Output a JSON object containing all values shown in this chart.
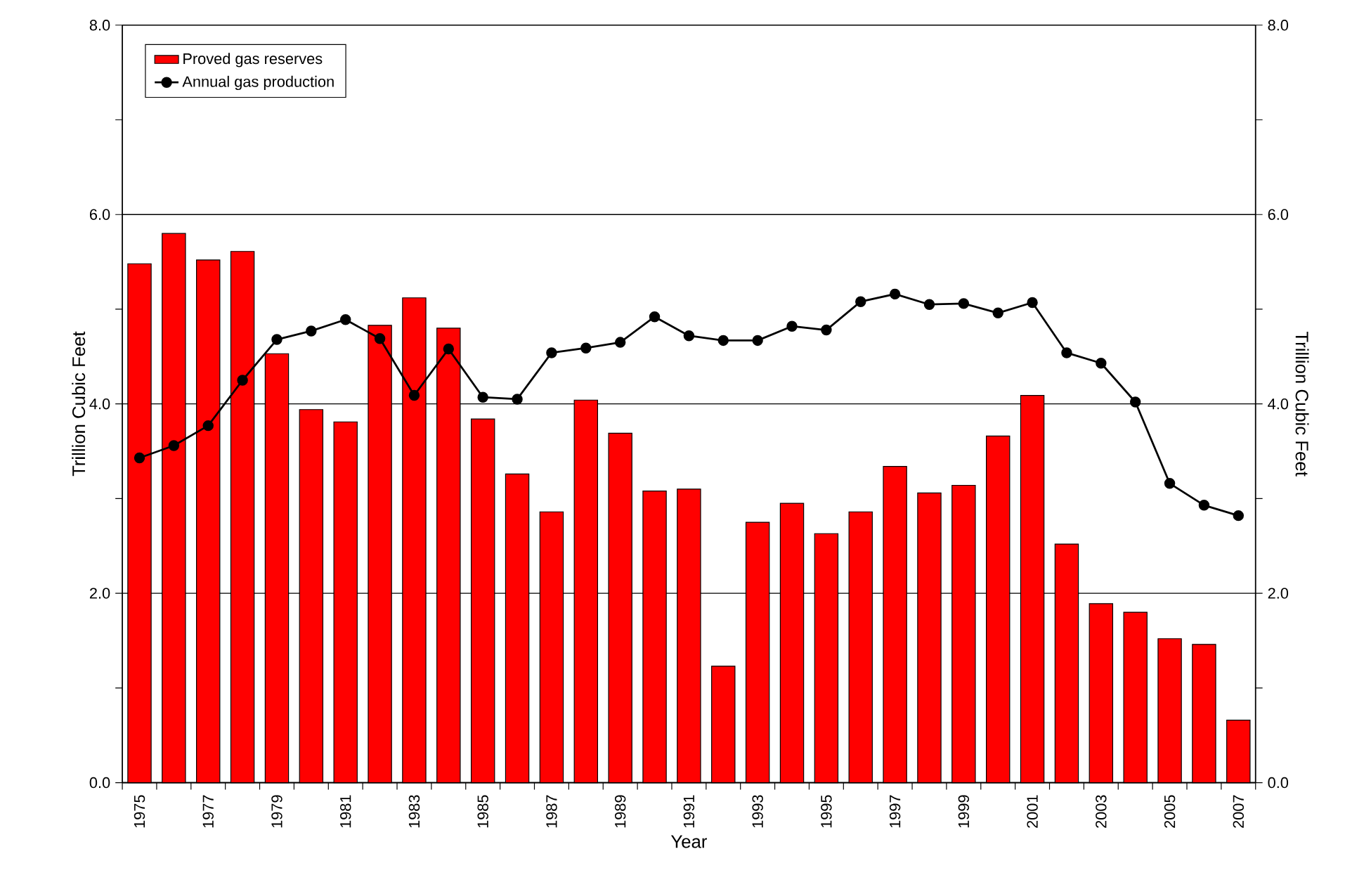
{
  "chart_data": {
    "type": "bar",
    "xlabel": "Year",
    "ylabel": "Trillion Cubic Feet",
    "y2label": "Trillion Cubic Feet",
    "categories": [
      "1975",
      null,
      "1977",
      null,
      "1979",
      null,
      "1981",
      null,
      "1983",
      null,
      "1985",
      null,
      "1987",
      null,
      "1989",
      null,
      "1991",
      null,
      "1993",
      null,
      "1995",
      null,
      "1997",
      null,
      "1999",
      null,
      "2001",
      null,
      "2003",
      null,
      "2005",
      null,
      "2007"
    ],
    "series": [
      {
        "name": "Proved gas reserves",
        "color": "#ff0000",
        "values": [
          5.48,
          5.8,
          5.52,
          5.61,
          4.53,
          3.94,
          3.81,
          4.83,
          5.12,
          4.8,
          3.84,
          3.26,
          2.86,
          4.04,
          3.69,
          3.08,
          3.1,
          1.23,
          2.75,
          2.95,
          2.63,
          2.86,
          3.34,
          3.06,
          3.14,
          3.66,
          4.09,
          2.52,
          1.89,
          1.8,
          1.52,
          1.46,
          0.66
        ]
      },
      {
        "name": "Annual gas production",
        "type": "line",
        "axis": "y2",
        "color": "#000000",
        "values": [
          3.43,
          3.56,
          3.77,
          4.25,
          4.68,
          4.77,
          4.89,
          4.69,
          4.09,
          4.58,
          4.07,
          4.05,
          4.54,
          4.59,
          4.65,
          4.92,
          4.72,
          4.67,
          4.67,
          4.82,
          4.78,
          5.08,
          5.16,
          5.05,
          5.06,
          4.96,
          5.07,
          4.54,
          4.43,
          4.02,
          3.16,
          2.93,
          2.82
        ]
      }
    ],
    "ylim": [
      0,
      8
    ],
    "yticks": [
      {
        "value": 0,
        "label": "0.0"
      },
      {
        "value": 1,
        "label": null
      },
      {
        "value": 2,
        "label": "2.0"
      },
      {
        "value": 3,
        "label": null
      },
      {
        "value": 4,
        "label": "4.0"
      },
      {
        "value": 5,
        "label": null
      },
      {
        "value": 6,
        "label": "6.0"
      },
      {
        "value": 7,
        "label": null
      },
      {
        "value": 8,
        "label": "8.0"
      }
    ],
    "y2lim": [
      0,
      8
    ],
    "y2ticks": [
      {
        "value": 0,
        "label": "0.0"
      },
      {
        "value": 1,
        "label": null
      },
      {
        "value": 2,
        "label": "2.0"
      },
      {
        "value": 3,
        "label": null
      },
      {
        "value": 4,
        "label": "4.0"
      },
      {
        "value": 5,
        "label": null
      },
      {
        "value": 6,
        "label": "6.0"
      },
      {
        "value": 7,
        "label": null
      },
      {
        "value": 8,
        "label": "8.0"
      }
    ],
    "grid": "y",
    "legend": "top left",
    "marker": "circle",
    "line_style": "solid"
  }
}
